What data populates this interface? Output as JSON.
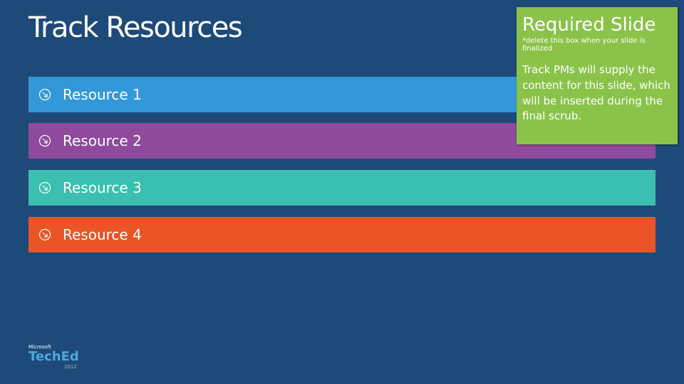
{
  "title": "Track Resources",
  "resources": [
    {
      "label": "Resource 1",
      "color": "#3498d8"
    },
    {
      "label": "Resource 2",
      "color": "#8e4a9c"
    },
    {
      "label": "Resource 3",
      "color": "#3bbfb0"
    },
    {
      "label": "Resource 4",
      "color": "#ea5427"
    }
  ],
  "note": {
    "heading": "Required Slide",
    "instruction": "*delete this box when your slide is finalized",
    "body": "Track PMs will supply the content for this slide, which will be inserted during the final scrub."
  },
  "logo": {
    "company": "Microsoft",
    "product": "TechEd",
    "year": "2012"
  }
}
